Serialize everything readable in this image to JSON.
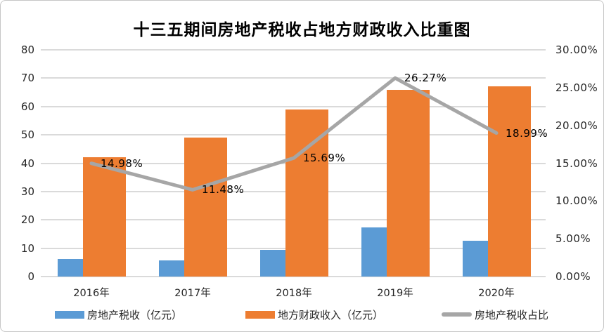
{
  "title": "十三五期间房地产税收占地方财政收入比重图",
  "chart_data": {
    "type": "bar",
    "subtype": "combo-bar-line",
    "categories": [
      "2016年",
      "2017年",
      "2018年",
      "2019年",
      "2020年"
    ],
    "series": [
      {
        "name": "房地产税收（亿元）",
        "type": "bar",
        "axis": "left",
        "color": "#5B9BD5",
        "values": [
          6.3,
          5.6,
          9.3,
          17.3,
          12.7
        ]
      },
      {
        "name": "地方财政收入（亿元）",
        "type": "bar",
        "axis": "left",
        "color": "#ED7D31",
        "values": [
          42,
          49,
          59,
          66,
          67
        ]
      },
      {
        "name": "房地产税收占比",
        "type": "line",
        "axis": "right",
        "color": "#A6A6A6",
        "values": [
          14.98,
          11.48,
          15.69,
          26.27,
          18.99
        ],
        "point_labels": [
          "14.98%",
          "11.48%",
          "15.69%",
          "26.27%",
          "18.99%"
        ]
      }
    ],
    "left_axis": {
      "min": 0,
      "max": 80,
      "step": 10,
      "ticks": [
        "0",
        "10",
        "20",
        "30",
        "40",
        "50",
        "60",
        "70",
        "80"
      ]
    },
    "right_axis": {
      "min": 0,
      "max": 30,
      "step": 5,
      "ticks": [
        "0.00%",
        "5.00%",
        "10.00%",
        "15.00%",
        "20.00%",
        "25.00%",
        "30.00%"
      ]
    },
    "grid": true,
    "legend_position": "bottom",
    "gridline_color": "#DADADA"
  }
}
